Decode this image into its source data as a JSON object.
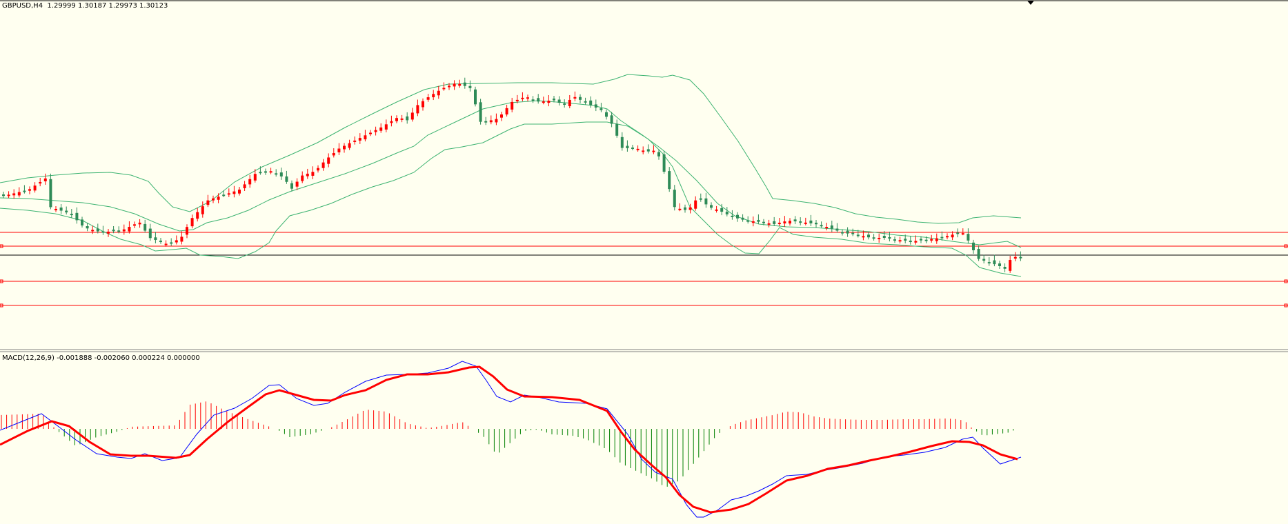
{
  "window": {
    "symbol_label": "GBPUSD,H4  1.29999 1.30187 1.29973 1.30123"
  },
  "indicators": {
    "main": "Bollinger Bands",
    "macd_label": "MACD(12,26,9) -0.001888 -0.002060 0.000224 0.000000"
  },
  "colors": {
    "background": "#fffff0",
    "bull_candle": "#2e8b57",
    "bear_candle": "#ff0000",
    "bands": "#3cb371",
    "hline": "#ff0000",
    "price_line": "#000000",
    "macd_line": "#0000ff",
    "signal_line": "#ff0000",
    "hist_positive": "#ff0000",
    "hist_negative": "#008000"
  },
  "icons": {
    "shift_marker": "chart-shift-icon"
  },
  "chart_data": [
    {
      "type": "candlestick",
      "title": "GBPUSD,H4",
      "ohlc_last": {
        "open": 1.29999,
        "high": 1.30187,
        "low": 1.29973,
        "close": 1.30123
      },
      "overlays": [
        "Bollinger Bands (upper, middle, lower)"
      ],
      "horizontal_lines": 4,
      "grid": false
    },
    {
      "type": "line",
      "title": "MACD(12,26,9)",
      "values_printed": {
        "macd": -0.001888,
        "signal": -0.00206,
        "osma": 0.000224,
        "zero": 0.0
      },
      "series": [
        "MACD",
        "Signal",
        "OsMA histogram"
      ],
      "grid": false
    }
  ]
}
